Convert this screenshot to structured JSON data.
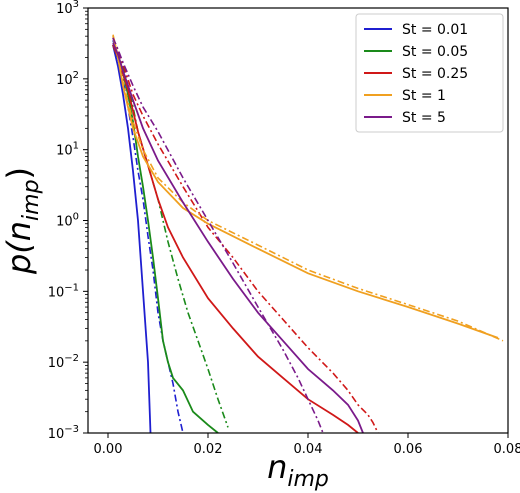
{
  "chart_data": {
    "type": "line",
    "xlabel_main": "n",
    "xlabel_sub": "imp",
    "ylabel_main": "p(n",
    "ylabel_sub": "imp",
    "ylabel_close": ")",
    "xlim": [
      -0.004,
      0.08
    ],
    "ylim_log10": [
      -3,
      3
    ],
    "y_scale": "log",
    "grid": false,
    "legend_position": "top-right",
    "x_ticks": [
      {
        "value": 0.0,
        "label": "0.00"
      },
      {
        "value": 0.02,
        "label": "0.02"
      },
      {
        "value": 0.04,
        "label": "0.04"
      },
      {
        "value": 0.06,
        "label": "0.06"
      },
      {
        "value": 0.08,
        "label": "0.08"
      }
    ],
    "y_ticks": [
      {
        "exp": -3,
        "base": "10",
        "sup": "−3"
      },
      {
        "exp": -2,
        "base": "10",
        "sup": "−2"
      },
      {
        "exp": -1,
        "base": "10",
        "sup": "−1"
      },
      {
        "exp": 0,
        "base": "10",
        "sup": "0"
      },
      {
        "exp": 1,
        "base": "10",
        "sup": "1"
      },
      {
        "exp": 2,
        "base": "10",
        "sup": "2"
      },
      {
        "exp": 3,
        "base": "10",
        "sup": "3"
      }
    ],
    "series": [
      {
        "name": "St = 0.01",
        "color": "#1f1fd0",
        "solid": [
          [
            0.001,
            300
          ],
          [
            0.002,
            150
          ],
          [
            0.003,
            60
          ],
          [
            0.004,
            20
          ],
          [
            0.005,
            5
          ],
          [
            0.006,
            1
          ],
          [
            0.007,
            0.1
          ],
          [
            0.008,
            0.01
          ],
          [
            0.0085,
            0.001
          ]
        ],
        "dashdot": [
          [
            0.001,
            350
          ],
          [
            0.002,
            200
          ],
          [
            0.003,
            100
          ],
          [
            0.004,
            40
          ],
          [
            0.005,
            15
          ],
          [
            0.006,
            5
          ],
          [
            0.007,
            2
          ],
          [
            0.008,
            0.6
          ],
          [
            0.009,
            0.2
          ],
          [
            0.01,
            0.05
          ],
          [
            0.011,
            0.02
          ],
          [
            0.012,
            0.01
          ],
          [
            0.013,
            0.005
          ],
          [
            0.014,
            0.002
          ],
          [
            0.015,
            0.001
          ]
        ]
      },
      {
        "name": "St = 0.05",
        "color": "#1a8a1a",
        "solid": [
          [
            0.001,
            300
          ],
          [
            0.002,
            200
          ],
          [
            0.003,
            120
          ],
          [
            0.004,
            60
          ],
          [
            0.005,
            25
          ],
          [
            0.006,
            8
          ],
          [
            0.007,
            3
          ],
          [
            0.008,
            1
          ],
          [
            0.009,
            0.3
          ],
          [
            0.01,
            0.08
          ],
          [
            0.011,
            0.02
          ],
          [
            0.012,
            0.01
          ],
          [
            0.013,
            0.006
          ],
          [
            0.015,
            0.004
          ],
          [
            0.017,
            0.002
          ],
          [
            0.02,
            0.0013
          ],
          [
            0.022,
            0.001
          ]
        ],
        "dashdot": [
          [
            0.001,
            380
          ],
          [
            0.002,
            250
          ],
          [
            0.003,
            150
          ],
          [
            0.004,
            80
          ],
          [
            0.005,
            40
          ],
          [
            0.006,
            18
          ],
          [
            0.008,
            6
          ],
          [
            0.01,
            2
          ],
          [
            0.012,
            0.5
          ],
          [
            0.014,
            0.15
          ],
          [
            0.016,
            0.05
          ],
          [
            0.018,
            0.02
          ],
          [
            0.02,
            0.008
          ],
          [
            0.022,
            0.003
          ],
          [
            0.024,
            0.0012
          ]
        ]
      },
      {
        "name": "St = 0.25",
        "color": "#d01818",
        "solid": [
          [
            0.001,
            300
          ],
          [
            0.002,
            200
          ],
          [
            0.003,
            120
          ],
          [
            0.004,
            70
          ],
          [
            0.005,
            35
          ],
          [
            0.006,
            18
          ],
          [
            0.008,
            6
          ],
          [
            0.01,
            2
          ],
          [
            0.012,
            0.8
          ],
          [
            0.015,
            0.3
          ],
          [
            0.02,
            0.08
          ],
          [
            0.025,
            0.03
          ],
          [
            0.03,
            0.012
          ],
          [
            0.035,
            0.006
          ],
          [
            0.04,
            0.003
          ],
          [
            0.045,
            0.0018
          ],
          [
            0.048,
            0.0013
          ],
          [
            0.05,
            0.001
          ]
        ],
        "dashdot": [
          [
            0.001,
            380
          ],
          [
            0.002,
            250
          ],
          [
            0.003,
            160
          ],
          [
            0.005,
            60
          ],
          [
            0.007,
            30
          ],
          [
            0.01,
            12
          ],
          [
            0.015,
            3
          ],
          [
            0.02,
            0.8
          ],
          [
            0.025,
            0.3
          ],
          [
            0.03,
            0.1
          ],
          [
            0.035,
            0.04
          ],
          [
            0.04,
            0.016
          ],
          [
            0.045,
            0.007
          ],
          [
            0.048,
            0.004
          ],
          [
            0.05,
            0.0025
          ],
          [
            0.052,
            0.0018
          ],
          [
            0.053,
            0.0014
          ],
          [
            0.054,
            0.001
          ]
        ]
      },
      {
        "name": "St = 1",
        "color": "#f0a020",
        "solid": [
          [
            0.001,
            400
          ],
          [
            0.002,
            200
          ],
          [
            0.003,
            80
          ],
          [
            0.005,
            20
          ],
          [
            0.007,
            8
          ],
          [
            0.01,
            3.5
          ],
          [
            0.015,
            1.5
          ],
          [
            0.02,
            0.9
          ],
          [
            0.03,
            0.4
          ],
          [
            0.04,
            0.18
          ],
          [
            0.05,
            0.1
          ],
          [
            0.06,
            0.06
          ],
          [
            0.07,
            0.035
          ],
          [
            0.078,
            0.022
          ]
        ],
        "dashdot": [
          [
            0.001,
            420
          ],
          [
            0.002,
            210
          ],
          [
            0.003,
            90
          ],
          [
            0.005,
            25
          ],
          [
            0.007,
            10
          ],
          [
            0.01,
            4
          ],
          [
            0.015,
            1.8
          ],
          [
            0.02,
            1.0
          ],
          [
            0.03,
            0.45
          ],
          [
            0.04,
            0.2
          ],
          [
            0.05,
            0.11
          ],
          [
            0.06,
            0.065
          ],
          [
            0.07,
            0.038
          ],
          [
            0.079,
            0.02
          ]
        ]
      },
      {
        "name": "St = 5",
        "color": "#7a1a8a",
        "solid": [
          [
            0.001,
            320
          ],
          [
            0.002,
            220
          ],
          [
            0.003,
            130
          ],
          [
            0.005,
            50
          ],
          [
            0.007,
            20
          ],
          [
            0.01,
            7
          ],
          [
            0.015,
            1.8
          ],
          [
            0.02,
            0.5
          ],
          [
            0.025,
            0.15
          ],
          [
            0.03,
            0.05
          ],
          [
            0.035,
            0.02
          ],
          [
            0.04,
            0.008
          ],
          [
            0.045,
            0.004
          ],
          [
            0.048,
            0.0025
          ],
          [
            0.05,
            0.0015
          ],
          [
            0.051,
            0.001
          ]
        ],
        "dashdot": [
          [
            0.001,
            380
          ],
          [
            0.002,
            260
          ],
          [
            0.003,
            170
          ],
          [
            0.005,
            80
          ],
          [
            0.007,
            40
          ],
          [
            0.01,
            18
          ],
          [
            0.015,
            4
          ],
          [
            0.02,
            1.0
          ],
          [
            0.025,
            0.25
          ],
          [
            0.03,
            0.06
          ],
          [
            0.035,
            0.015
          ],
          [
            0.038,
            0.006
          ],
          [
            0.04,
            0.003
          ],
          [
            0.042,
            0.0015
          ],
          [
            0.043,
            0.001
          ]
        ]
      }
    ]
  }
}
